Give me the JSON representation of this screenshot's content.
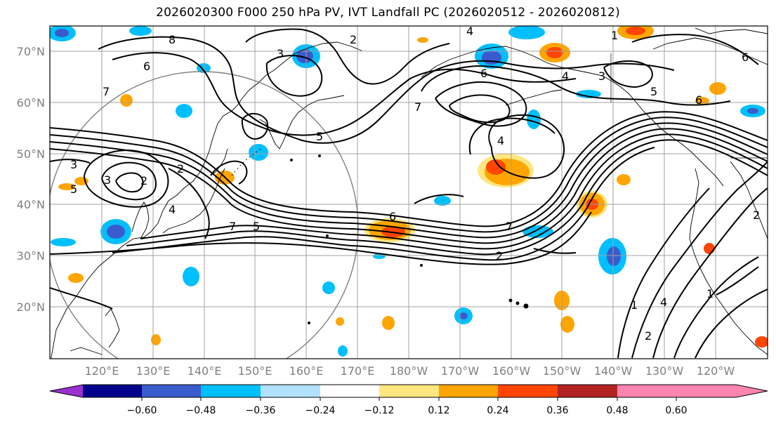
{
  "title": "2026020300 F000 250 hPa PV, IVT Landfall PC (2026020512 - 2026020812)",
  "lat_labels": [
    "70°N",
    "60°N",
    "50°N",
    "40°N",
    "30°N",
    "20°N"
  ],
  "lon_labels": [
    "120°E",
    "130°E",
    "140°E",
    "150°E",
    "160°E",
    "170°E",
    "180°W",
    "170°W",
    "160°W",
    "150°W",
    "140°W",
    "130°W",
    "120°W"
  ],
  "colorbar": {
    "ticks": [
      "−0.60",
      "−0.48",
      "−0.36",
      "−0.24",
      "−0.12",
      "0.12",
      "0.24",
      "0.36",
      "0.48",
      "0.60"
    ],
    "colors": [
      "#9b30d0",
      "#00008b",
      "#3a5bcc",
      "#00bfff",
      "#b0e2ff",
      "#ffffff",
      "#ffe680",
      "#ffa500",
      "#ff4500",
      "#b22222",
      "#ff85b0"
    ]
  },
  "contour_labels": [
    "8",
    "6",
    "7",
    "3",
    "2",
    "5",
    "4",
    "3",
    "2",
    "2",
    "4",
    "6",
    "3",
    "5",
    "6",
    "7",
    "6",
    "4",
    "3",
    "7",
    "2",
    "4",
    "5",
    "7",
    "6",
    "1",
    "2",
    "1",
    "4",
    "2",
    "1",
    "5"
  ],
  "colors": {
    "line": "#000000",
    "grid": "#a0a0a0",
    "land": "#000000"
  }
}
